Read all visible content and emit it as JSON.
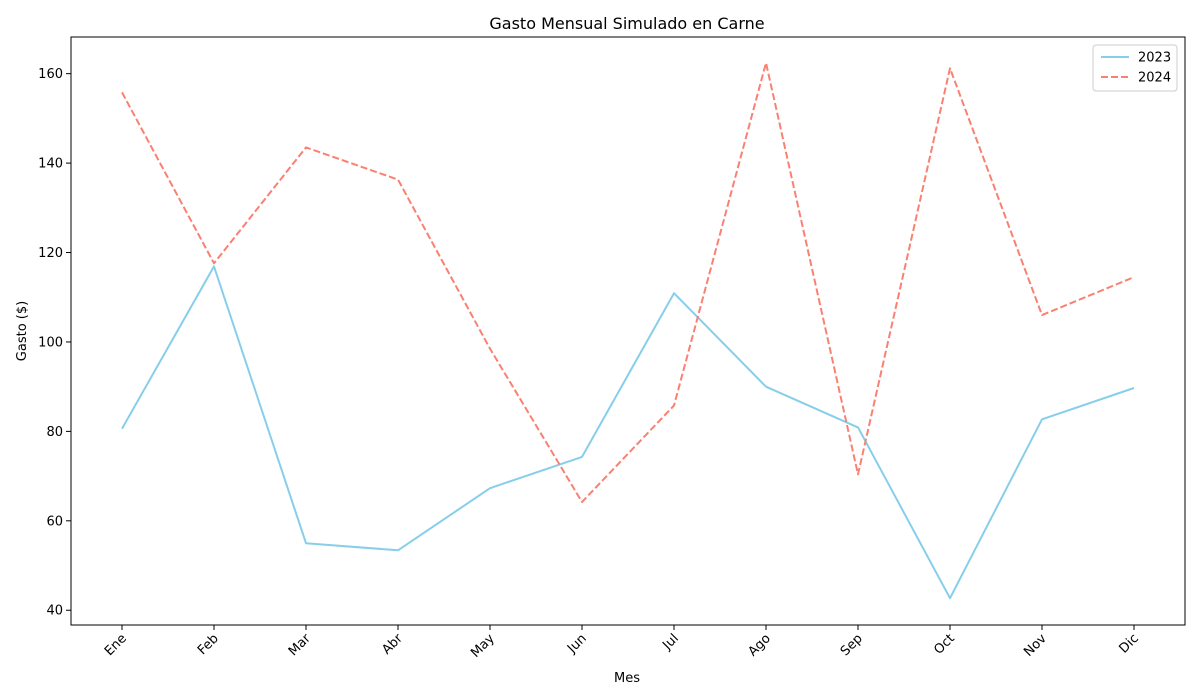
{
  "chart_data": {
    "type": "line",
    "title": "Gasto Mensual Simulado en Carne",
    "xlabel": "Mes",
    "ylabel": "Gasto ($)",
    "categories": [
      "Ene",
      "Feb",
      "Mar",
      "Abr",
      "May",
      "Jun",
      "Jul",
      "Ago",
      "Sep",
      "Oct",
      "Nov",
      "Dic"
    ],
    "ylim": [
      36.7,
      168.2
    ],
    "yticks": [
      "40",
      "60",
      "80",
      "100",
      "120",
      "140",
      "160"
    ],
    "grid": false,
    "legend_position": "top-right",
    "series": [
      {
        "name": "2023",
        "color": "#87CEEB",
        "line_style": "solid",
        "values": [
          80.6,
          116.9,
          55.0,
          53.4,
          67.3,
          74.3,
          110.9,
          90.0,
          80.9,
          42.7,
          82.7,
          89.7
        ]
      },
      {
        "name": "2024",
        "color": "#FA8072",
        "line_style": "dashed",
        "values": [
          155.8,
          117.6,
          143.5,
          136.3,
          98.5,
          64.2,
          85.8,
          162.4,
          70.4,
          161.2,
          106.0,
          114.5
        ]
      }
    ]
  }
}
